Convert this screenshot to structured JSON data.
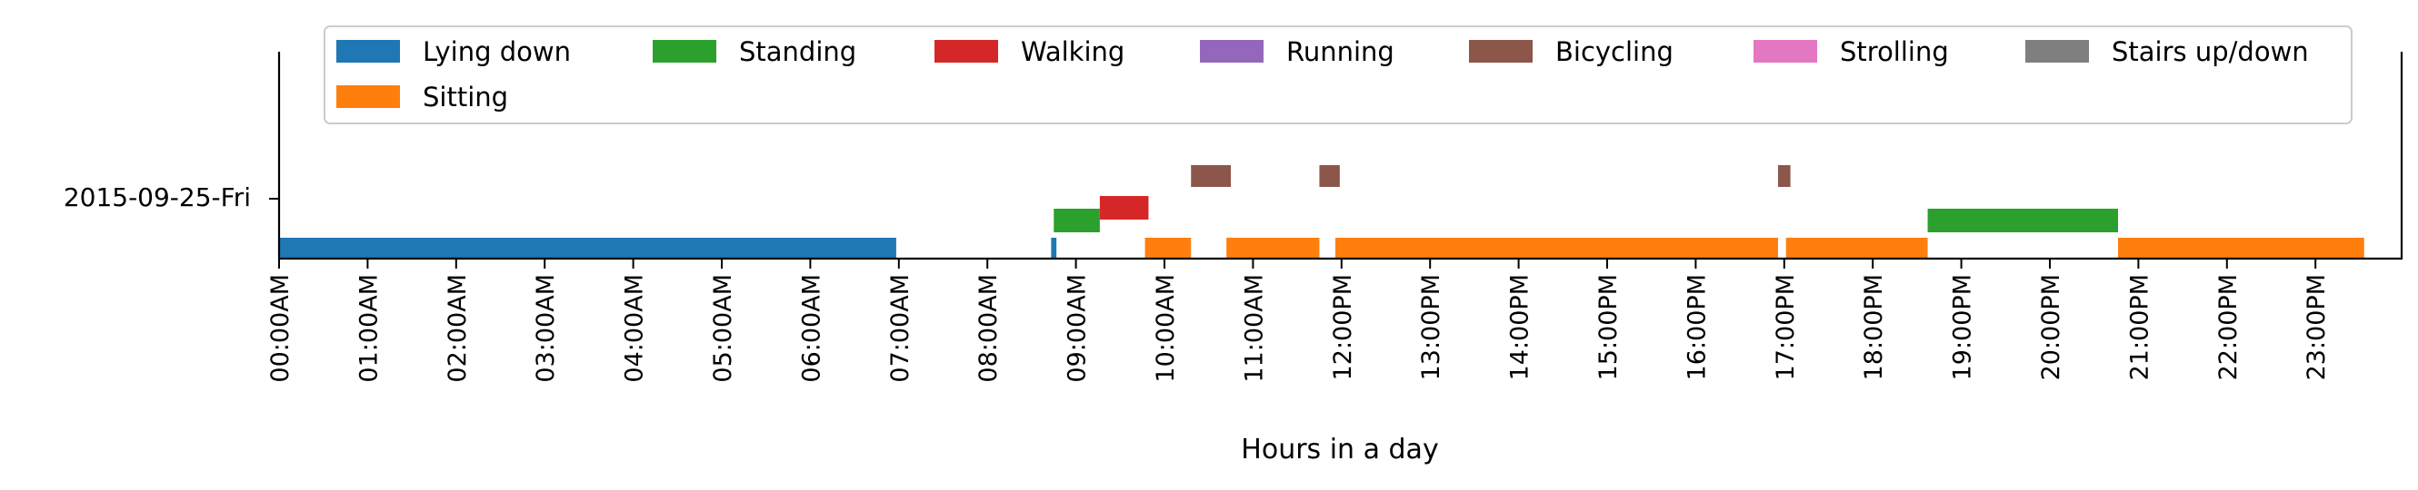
{
  "chart_data": {
    "type": "timeline",
    "xlabel": "Hours in a day",
    "ylabel": "",
    "xlim": [
      0,
      24
    ],
    "day": "2015-09-25-Fri",
    "xticks": [
      "00:00AM",
      "01:00AM",
      "02:00AM",
      "03:00AM",
      "04:00AM",
      "05:00AM",
      "06:00AM",
      "07:00AM",
      "08:00AM",
      "09:00AM",
      "10:00AM",
      "11:00AM",
      "12:00PM",
      "13:00PM",
      "14:00PM",
      "15:00PM",
      "16:00PM",
      "17:00PM",
      "18:00PM",
      "19:00PM",
      "20:00PM",
      "21:00PM",
      "22:00PM",
      "23:00PM"
    ],
    "legend_position": "top",
    "legend": [
      {
        "name": "Lying down",
        "color": "#1f77b4"
      },
      {
        "name": "Standing",
        "color": "#2ca02c"
      },
      {
        "name": "Walking",
        "color": "#d62728"
      },
      {
        "name": "Running",
        "color": "#9467bd"
      },
      {
        "name": "Bicycling",
        "color": "#8c564b"
      },
      {
        "name": "Strolling",
        "color": "#e377c2"
      },
      {
        "name": "Stairs up/down",
        "color": "#7f7f7f"
      },
      {
        "name": "Sitting",
        "color": "#ff7f0e"
      }
    ],
    "series": [
      {
        "name": "Lying down",
        "level": 0,
        "intervals": [
          [
            0.0,
            6.97
          ],
          [
            8.72,
            8.78
          ]
        ]
      },
      {
        "name": "Sitting",
        "level": 0,
        "intervals": [
          [
            9.78,
            10.3
          ],
          [
            10.7,
            11.75
          ],
          [
            11.93,
            16.93
          ],
          [
            17.02,
            18.62
          ],
          [
            20.77,
            23.55
          ]
        ]
      },
      {
        "name": "Standing",
        "level": 1,
        "intervals": [
          [
            8.75,
            9.27
          ],
          [
            18.62,
            20.77
          ]
        ]
      },
      {
        "name": "Walking",
        "level": 2,
        "intervals": [
          [
            9.27,
            9.82
          ]
        ]
      },
      {
        "name": "Bicycling",
        "level": 3,
        "intervals": [
          [
            10.3,
            10.75
          ],
          [
            11.75,
            11.98
          ],
          [
            16.93,
            17.07
          ]
        ]
      }
    ]
  }
}
